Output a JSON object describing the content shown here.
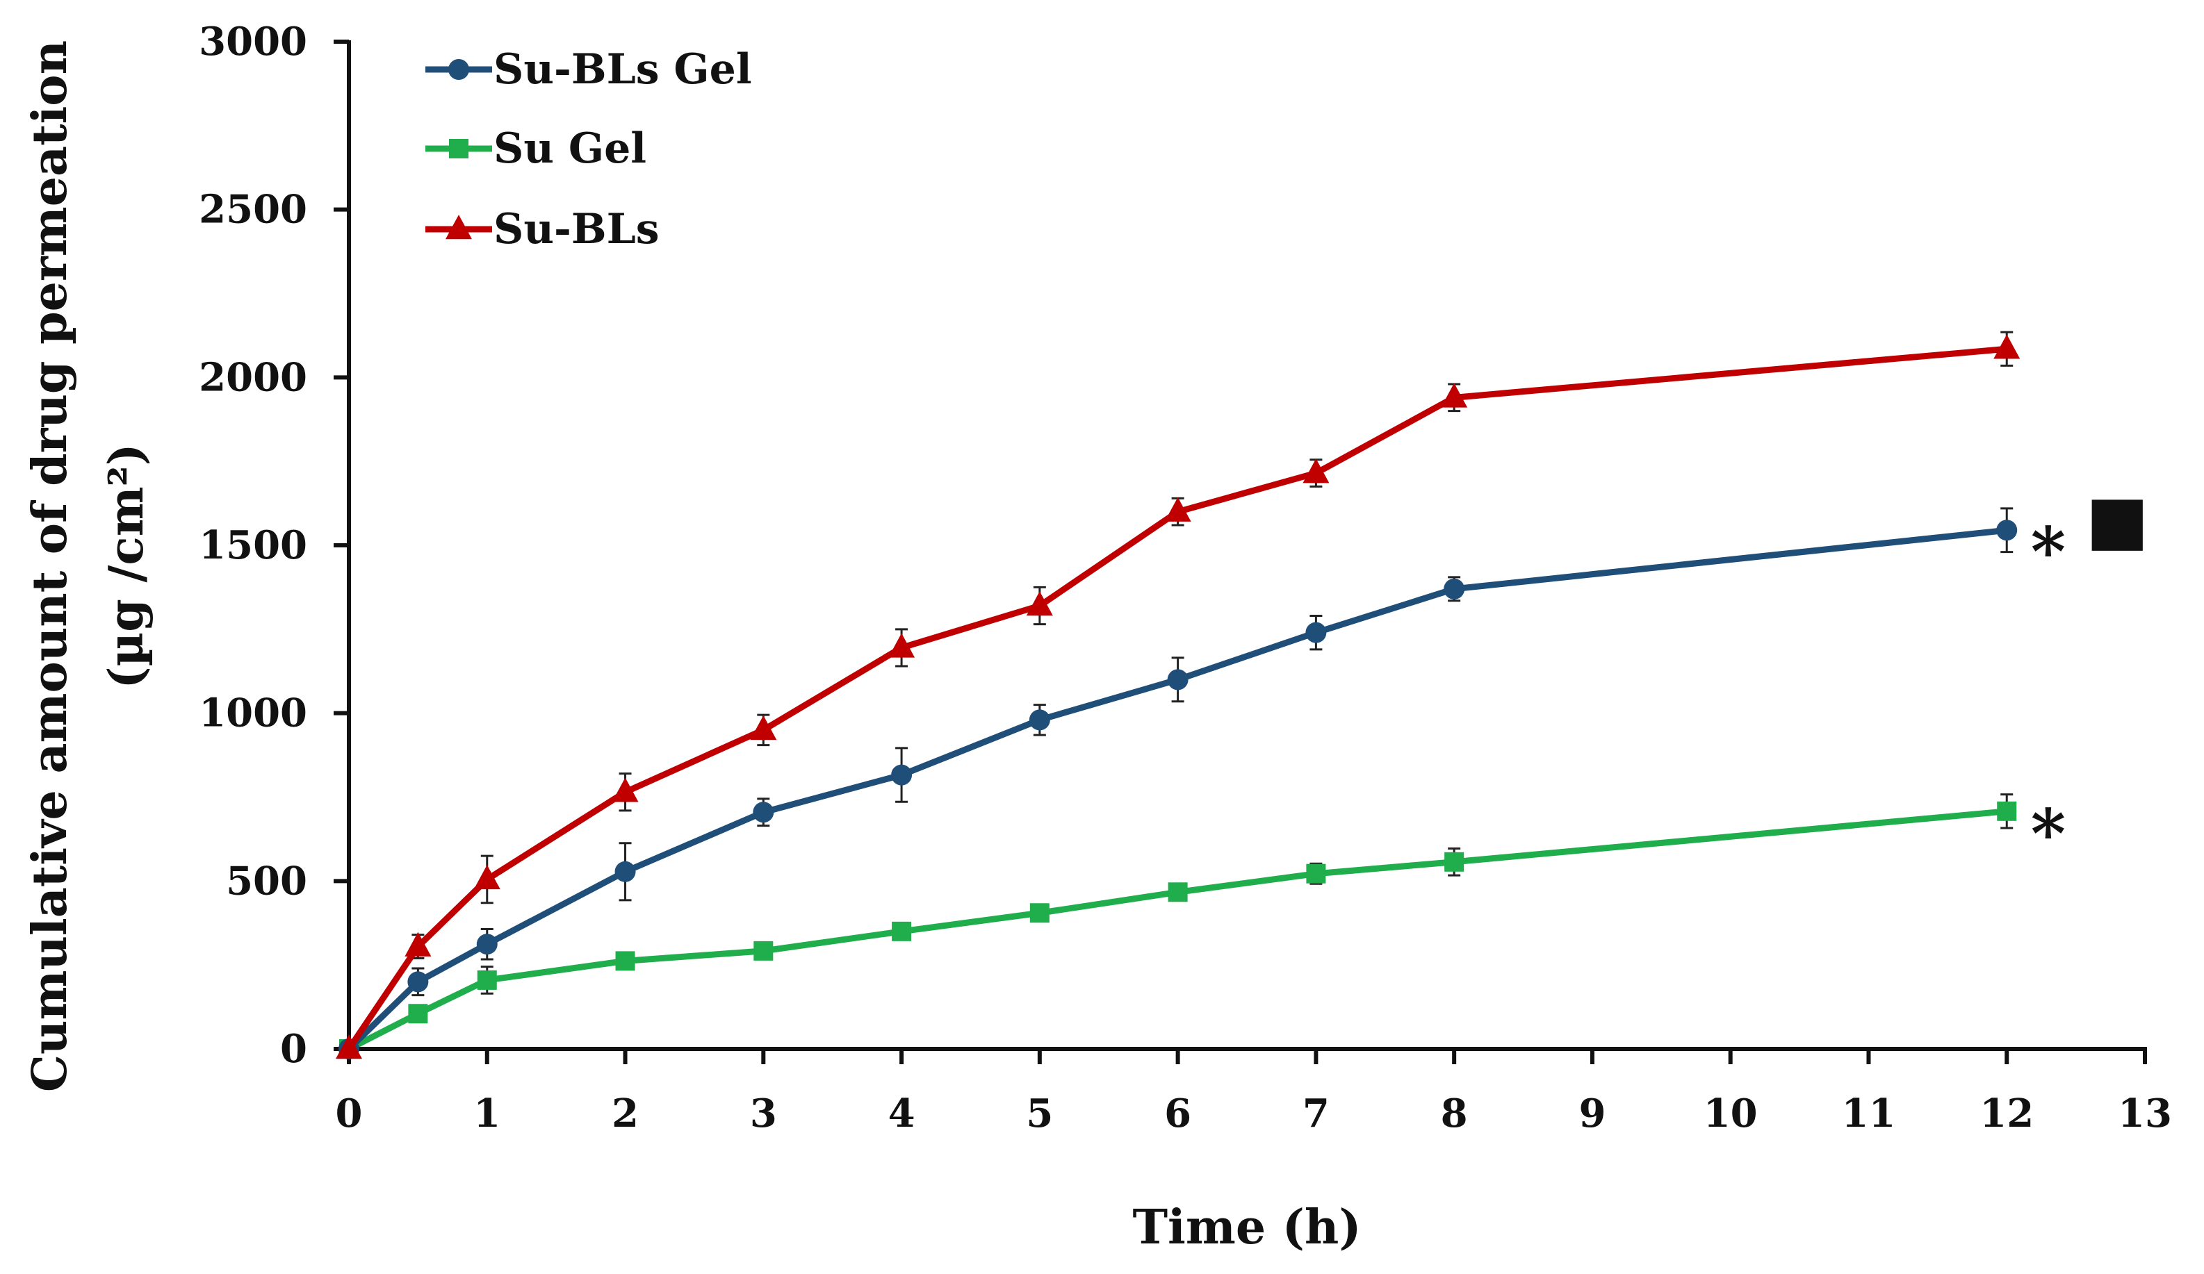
{
  "chart_data": {
    "type": "line",
    "title": "",
    "xlabel": "Time (h)",
    "ylabel": "Cumulative amount of drug permeation",
    "ylabel_line2": "(µg /cm²)",
    "xlim": [
      0,
      13
    ],
    "ylim": [
      0,
      3000
    ],
    "x_ticks": [
      "0",
      "1",
      "2",
      "3",
      "4",
      "5",
      "6",
      "7",
      "8",
      "9",
      "10",
      "11",
      "12",
      "13"
    ],
    "y_ticks": [
      "0",
      "500",
      "1000",
      "1500",
      "2000",
      "2500",
      "3000"
    ],
    "grid": false,
    "legend_position": "top-left",
    "series": [
      {
        "name": "Su-BLs Gel",
        "color": "#1f4e79",
        "marker": "circle",
        "x": [
          0,
          0.5,
          1,
          2,
          3,
          4,
          5,
          6,
          7,
          8,
          12
        ],
        "y": [
          0,
          200,
          312,
          528,
          705,
          816,
          980,
          1100,
          1240,
          1370,
          1545
        ],
        "err": [
          0,
          40,
          45,
          85,
          40,
          80,
          45,
          65,
          50,
          35,
          65
        ]
      },
      {
        "name": "Su Gel",
        "color": "#1fae4b",
        "marker": "square",
        "x": [
          0,
          0.5,
          1,
          2,
          3,
          4,
          5,
          6,
          7,
          8,
          12
        ],
        "y": [
          0,
          105,
          205,
          262,
          292,
          350,
          405,
          467,
          522,
          557,
          708
        ],
        "err": [
          0,
          20,
          40,
          20,
          25,
          15,
          15,
          15,
          30,
          40,
          50
        ]
      },
      {
        "name": "Su-BLs",
        "color": "#c00000",
        "marker": "triangle",
        "x": [
          0,
          0.5,
          1,
          2,
          3,
          4,
          5,
          6,
          7,
          8,
          12
        ],
        "y": [
          0,
          305,
          505,
          765,
          950,
          1195,
          1320,
          1600,
          1715,
          1940,
          2085
        ],
        "err": [
          0,
          35,
          70,
          55,
          45,
          55,
          55,
          40,
          40,
          40,
          50
        ]
      }
    ],
    "annotations": [
      {
        "text": "*",
        "x": 12.3,
        "y": 1535
      },
      {
        "text": "■",
        "x": 12.8,
        "y": 1560
      },
      {
        "text": "*",
        "x": 12.3,
        "y": 695
      }
    ]
  }
}
